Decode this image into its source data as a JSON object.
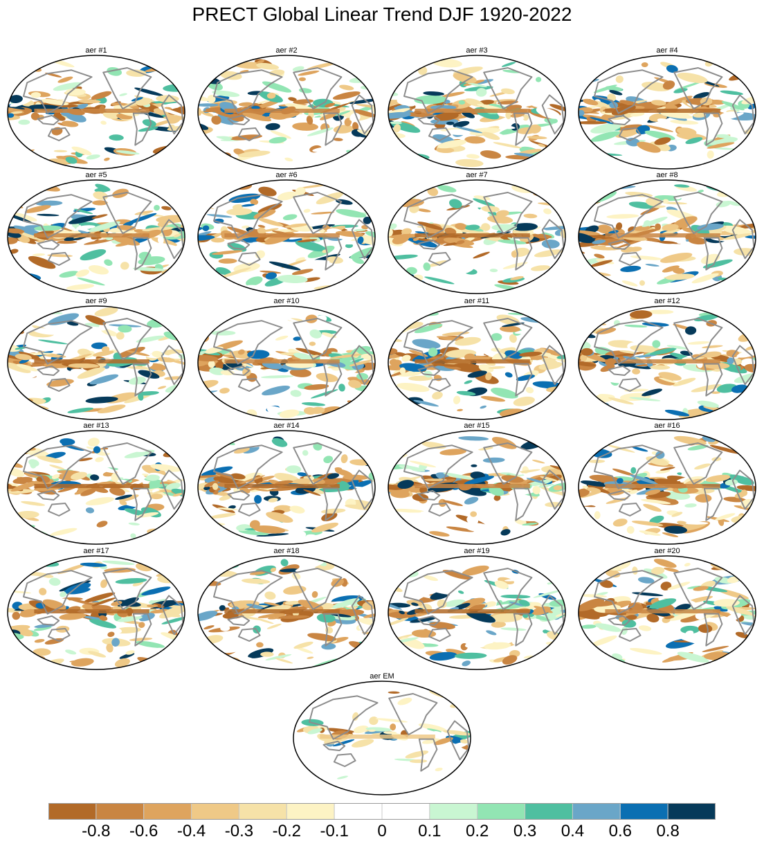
{
  "title": "PRECT Global Linear Trend DJF 1920-2022",
  "chart_data": {
    "type": "heatmap",
    "projection": "robinson (pacific-centered)",
    "panels": [
      {
        "label": "aer #1"
      },
      {
        "label": "aer #2"
      },
      {
        "label": "aer #3"
      },
      {
        "label": "aer #4"
      },
      {
        "label": "aer #5"
      },
      {
        "label": "aer #6"
      },
      {
        "label": "aer #7"
      },
      {
        "label": "aer #8"
      },
      {
        "label": "aer #9"
      },
      {
        "label": "aer #10"
      },
      {
        "label": "aer #11"
      },
      {
        "label": "aer #12"
      },
      {
        "label": "aer #13"
      },
      {
        "label": "aer #14"
      },
      {
        "label": "aer #15"
      },
      {
        "label": "aer #16"
      },
      {
        "label": "aer #17"
      },
      {
        "label": "aer #18"
      },
      {
        "label": "aer #19"
      },
      {
        "label": "aer #20"
      },
      {
        "label": "aer EM"
      }
    ],
    "colorbar": {
      "boundaries": [
        -0.8,
        -0.6,
        -0.4,
        -0.3,
        -0.2,
        -0.1,
        0,
        0.1,
        0.2,
        0.3,
        0.4,
        0.6,
        0.8
      ],
      "tick_labels": [
        "-0.8",
        "-0.6",
        "-0.4",
        "-0.3",
        "-0.2",
        "-0.1",
        "0",
        "0.1",
        "0.2",
        "0.3",
        "0.4",
        "0.6",
        "0.8"
      ],
      "colors": [
        "#b26a28",
        "#c98542",
        "#dea45e",
        "#efc987",
        "#f6e2a8",
        "#fdf3c4",
        "#ffffff",
        "#ffffff",
        "#c9f6d2",
        "#92e5b3",
        "#4fbfa0",
        "#6aa6c8",
        "#0b6fb2",
        "#063a5a"
      ]
    },
    "land_outline_color": "#8c8c8c"
  }
}
